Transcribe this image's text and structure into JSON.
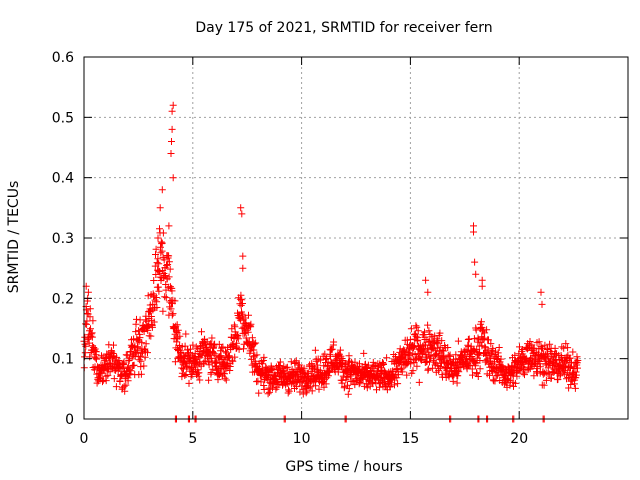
{
  "chart_data": {
    "type": "scatter",
    "title": "Day 175 of 2021, SRMTID for receiver fern",
    "xlabel": "GPS time / hours",
    "ylabel": "SRMTID / TECUs",
    "xlim": [
      0,
      25
    ],
    "ylim": [
      0,
      0.6
    ],
    "xticks": [
      0,
      5,
      10,
      15,
      20
    ],
    "yticks": [
      0,
      0.1,
      0.2,
      0.3,
      0.4,
      0.5,
      0.6
    ],
    "xtick_labels": [
      "0",
      "5",
      "10",
      "15",
      "20"
    ],
    "ytick_labels": [
      "0",
      "0.1",
      "0.2",
      "0.3",
      "0.4",
      "0.5",
      "0.6"
    ],
    "grid": true,
    "marker": "+",
    "colors": {
      "series": "#ff0000",
      "grid": "#a0a0a0",
      "axis": "#000000"
    },
    "series": [
      {
        "name": "SRMTID",
        "profile": {
          "t": [
            0.0,
            0.1,
            0.2,
            0.4,
            0.7,
            1.0,
            1.3,
            1.6,
            1.9,
            2.1,
            2.4,
            2.7,
            3.0,
            3.2,
            3.4,
            3.6,
            3.8,
            4.0,
            4.3,
            4.6,
            5.0,
            5.5,
            6.0,
            6.5,
            7.0,
            7.2,
            7.4,
            7.7,
            8.0,
            8.5,
            9.0,
            10.0,
            11.0,
            11.5,
            12.0,
            13.0,
            14.0,
            14.5,
            15.0,
            15.5,
            16.0,
            16.5,
            17.0,
            17.5,
            18.0,
            18.3,
            18.6,
            19.0,
            19.5,
            20.0,
            20.5,
            21.0,
            21.5,
            22.0,
            22.7
          ],
          "y": [
            0.1,
            0.17,
            0.15,
            0.12,
            0.07,
            0.09,
            0.1,
            0.08,
            0.07,
            0.1,
            0.12,
            0.13,
            0.16,
            0.21,
            0.24,
            0.26,
            0.24,
            0.2,
            0.12,
            0.1,
            0.09,
            0.11,
            0.1,
            0.09,
            0.14,
            0.18,
            0.16,
            0.12,
            0.08,
            0.07,
            0.07,
            0.07,
            0.08,
            0.1,
            0.08,
            0.07,
            0.07,
            0.09,
            0.11,
            0.12,
            0.12,
            0.1,
            0.08,
            0.1,
            0.11,
            0.13,
            0.1,
            0.09,
            0.07,
            0.09,
            0.11,
            0.1,
            0.09,
            0.09,
            0.08
          ]
        },
        "spikes": [
          {
            "x": 0.1,
            "y": 0.22
          },
          {
            "x": 0.2,
            "y": 0.21
          },
          {
            "x": 3.4,
            "y": 0.3
          },
          {
            "x": 3.5,
            "y": 0.35
          },
          {
            "x": 3.6,
            "y": 0.38
          },
          {
            "x": 3.9,
            "y": 0.32
          },
          {
            "x": 4.0,
            "y": 0.44
          },
          {
            "x": 4.02,
            "y": 0.46
          },
          {
            "x": 4.05,
            "y": 0.48
          },
          {
            "x": 4.05,
            "y": 0.51
          },
          {
            "x": 4.1,
            "y": 0.52
          },
          {
            "x": 4.1,
            "y": 0.4
          },
          {
            "x": 7.2,
            "y": 0.35
          },
          {
            "x": 7.25,
            "y": 0.34
          },
          {
            "x": 7.3,
            "y": 0.27
          },
          {
            "x": 7.3,
            "y": 0.25
          },
          {
            "x": 15.7,
            "y": 0.23
          },
          {
            "x": 15.8,
            "y": 0.21
          },
          {
            "x": 17.9,
            "y": 0.32
          },
          {
            "x": 17.9,
            "y": 0.31
          },
          {
            "x": 17.95,
            "y": 0.26
          },
          {
            "x": 18.0,
            "y": 0.24
          },
          {
            "x": 18.3,
            "y": 0.23
          },
          {
            "x": 18.3,
            "y": 0.22
          },
          {
            "x": 21.0,
            "y": 0.21
          },
          {
            "x": 21.05,
            "y": 0.19
          }
        ],
        "zeros": [
          4.2,
          4.8,
          5.1,
          9.2,
          12.0,
          16.8,
          18.1,
          18.5,
          19.7,
          21.1
        ]
      }
    ]
  }
}
